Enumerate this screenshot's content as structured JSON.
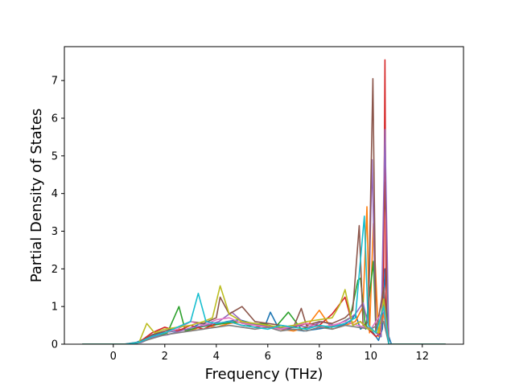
{
  "chart_data": {
    "type": "line",
    "title": "",
    "xlabel": "Frequency (THz)",
    "ylabel": "Partial Density of States",
    "xlim": [
      -1.9,
      13.6
    ],
    "ylim": [
      0,
      7.9
    ],
    "xticks": [
      0,
      2,
      4,
      6,
      8,
      10,
      12
    ],
    "xtick_labels": [
      "0",
      "2",
      "4",
      "6",
      "8",
      "10",
      "12"
    ],
    "yticks": [
      0,
      1,
      2,
      3,
      4,
      5,
      6,
      7
    ],
    "ytick_labels": [
      "0",
      "1",
      "2",
      "3",
      "4",
      "5",
      "6",
      "7"
    ],
    "grid": false,
    "legend": "none",
    "x_range_of_data": [
      -1.2,
      12.9
    ],
    "series": [
      {
        "color": "#1f77b4",
        "x": [
          -1.2,
          0.4,
          0.9,
          1.4,
          1.9,
          2.4,
          2.9,
          3.4,
          3.9,
          4.4,
          4.9,
          5.4,
          5.9,
          6.1,
          6.4,
          6.9,
          7.4,
          7.9,
          8.4,
          8.9,
          9.2,
          9.4,
          9.6,
          9.8,
          10.1,
          10.3,
          10.45,
          10.55,
          10.65,
          10.8,
          12.9
        ],
        "y": [
          0,
          0,
          0.05,
          0.2,
          0.3,
          0.35,
          0.4,
          0.55,
          0.5,
          0.6,
          0.65,
          0.55,
          0.5,
          0.85,
          0.45,
          0.4,
          0.35,
          0.4,
          0.45,
          0.5,
          0.6,
          0.8,
          0.4,
          0.5,
          0.3,
          0.1,
          0.4,
          2.0,
          0.3,
          0,
          0
        ]
      },
      {
        "color": "#ff7f0e",
        "x": [
          -1.2,
          0.5,
          1.0,
          1.5,
          2.0,
          2.5,
          3.0,
          3.5,
          4.0,
          4.5,
          5.0,
          5.5,
          6.0,
          6.5,
          7.0,
          7.5,
          8.0,
          8.5,
          9.0,
          9.4,
          9.7,
          9.85,
          9.95,
          10.1,
          10.3,
          10.5,
          10.7,
          12.9
        ],
        "y": [
          0,
          0,
          0.05,
          0.15,
          0.3,
          0.4,
          0.35,
          0.5,
          0.45,
          0.55,
          0.6,
          0.5,
          0.45,
          0.4,
          0.35,
          0.45,
          0.9,
          0.4,
          0.5,
          0.6,
          1.0,
          3.65,
          0.3,
          3.2,
          0.2,
          0.8,
          0,
          0
        ]
      },
      {
        "color": "#2ca02c",
        "x": [
          -1.2,
          0.6,
          1.1,
          1.6,
          2.1,
          2.55,
          2.8,
          3.3,
          3.8,
          4.3,
          4.8,
          5.3,
          5.8,
          6.3,
          6.8,
          7.3,
          7.8,
          8.3,
          8.8,
          9.2,
          9.5,
          9.6,
          9.8,
          10.1,
          10.2,
          10.4,
          10.55,
          10.7,
          12.9
        ],
        "y": [
          0,
          0,
          0.05,
          0.2,
          0.3,
          1.0,
          0.35,
          0.45,
          0.5,
          0.55,
          0.6,
          0.5,
          0.55,
          0.45,
          0.85,
          0.4,
          0.5,
          0.45,
          0.55,
          0.7,
          1.7,
          1.75,
          0.4,
          2.2,
          0.3,
          0.2,
          4.3,
          0,
          0
        ]
      },
      {
        "color": "#d62728",
        "x": [
          -1.2,
          0.5,
          1.0,
          1.5,
          2.0,
          2.5,
          3.0,
          3.5,
          4.0,
          4.5,
          5.0,
          5.5,
          6.0,
          6.5,
          7.0,
          7.5,
          8.0,
          8.5,
          9.0,
          9.3,
          9.6,
          9.9,
          10.2,
          10.4,
          10.5,
          10.55,
          10.6,
          10.7,
          12.9
        ],
        "y": [
          0,
          0,
          0.05,
          0.3,
          0.45,
          0.35,
          0.5,
          0.4,
          0.55,
          0.6,
          0.5,
          0.45,
          0.5,
          0.4,
          0.45,
          0.55,
          0.5,
          0.8,
          1.25,
          0.5,
          0.6,
          0.4,
          0.2,
          0.3,
          2.0,
          7.55,
          0.5,
          0,
          0
        ]
      },
      {
        "color": "#9467bd",
        "x": [
          -1.2,
          0.6,
          1.1,
          1.6,
          2.1,
          2.6,
          3.1,
          3.6,
          4.1,
          4.6,
          5.1,
          5.6,
          6.1,
          6.6,
          7.1,
          7.6,
          8.1,
          8.6,
          9.1,
          9.4,
          9.7,
          9.9,
          10.05,
          10.2,
          10.4,
          10.55,
          10.7,
          12.9
        ],
        "y": [
          0,
          0,
          0.05,
          0.2,
          0.25,
          0.35,
          0.45,
          0.5,
          0.6,
          0.85,
          0.55,
          0.5,
          0.45,
          0.4,
          0.5,
          0.45,
          0.6,
          0.5,
          0.65,
          0.8,
          1.1,
          0.5,
          4.9,
          0.3,
          0.2,
          5.7,
          0,
          0
        ]
      },
      {
        "color": "#8c564b",
        "x": [
          -1.2,
          0.5,
          1.0,
          1.5,
          2.0,
          2.5,
          3.0,
          3.5,
          4.0,
          4.15,
          4.5,
          5.0,
          5.5,
          6.0,
          6.5,
          7.0,
          7.3,
          7.5,
          8.0,
          8.5,
          9.0,
          9.3,
          9.55,
          9.7,
          9.9,
          10.08,
          10.2,
          10.5,
          10.7,
          12.9
        ],
        "y": [
          0,
          0,
          0.05,
          0.25,
          0.35,
          0.45,
          0.6,
          0.55,
          0.7,
          1.25,
          0.8,
          1.0,
          0.6,
          0.55,
          0.5,
          0.45,
          0.95,
          0.5,
          0.6,
          0.55,
          0.7,
          0.9,
          3.15,
          0.5,
          0.6,
          7.05,
          0.3,
          1.5,
          0,
          0
        ]
      },
      {
        "color": "#e377c2",
        "x": [
          -1.2,
          0.5,
          1.0,
          1.5,
          2.0,
          2.5,
          3.0,
          3.5,
          4.0,
          4.5,
          5.0,
          5.5,
          6.0,
          6.5,
          7.0,
          7.5,
          8.0,
          8.5,
          9.0,
          9.5,
          10.0,
          10.5,
          10.7,
          12.9
        ],
        "y": [
          0,
          0,
          0.05,
          0.2,
          0.3,
          0.4,
          0.6,
          0.5,
          0.65,
          0.7,
          0.55,
          0.5,
          0.45,
          0.4,
          0.5,
          0.55,
          0.45,
          0.5,
          0.6,
          0.5,
          0.4,
          0.9,
          0,
          0
        ]
      },
      {
        "color": "#7f7f7f",
        "x": [
          -1.2,
          0.5,
          1.0,
          1.5,
          2.0,
          2.5,
          3.0,
          3.5,
          4.0,
          4.5,
          5.0,
          5.5,
          6.0,
          6.5,
          7.0,
          7.5,
          8.0,
          8.5,
          9.0,
          9.5,
          10.0,
          10.5,
          10.7,
          12.9
        ],
        "y": [
          0,
          0,
          0.05,
          0.15,
          0.25,
          0.3,
          0.35,
          0.4,
          0.45,
          0.5,
          0.45,
          0.4,
          0.45,
          0.35,
          0.4,
          0.35,
          0.45,
          0.4,
          0.5,
          0.45,
          0.4,
          0.6,
          0,
          0
        ]
      },
      {
        "color": "#bcbd22",
        "x": [
          -1.2,
          0.5,
          1.0,
          1.3,
          1.6,
          2.0,
          2.5,
          3.0,
          3.5,
          3.85,
          4.15,
          4.5,
          5.0,
          5.5,
          6.0,
          6.5,
          7.0,
          7.5,
          8.0,
          8.5,
          8.8,
          9.0,
          9.3,
          9.6,
          9.9,
          10.3,
          10.5,
          10.7,
          12.9
        ],
        "y": [
          0,
          0,
          0.05,
          0.55,
          0.3,
          0.4,
          0.45,
          0.5,
          0.6,
          0.7,
          1.55,
          0.8,
          0.6,
          0.55,
          0.5,
          0.45,
          0.5,
          0.6,
          0.65,
          0.7,
          1.05,
          1.45,
          0.5,
          0.6,
          0.4,
          0.3,
          1.2,
          0,
          0
        ]
      },
      {
        "color": "#17becf",
        "x": [
          -1.2,
          0.5,
          1.0,
          1.5,
          2.0,
          2.5,
          3.0,
          3.3,
          3.6,
          4.0,
          4.5,
          5.0,
          5.5,
          6.0,
          6.5,
          7.0,
          7.5,
          8.0,
          8.5,
          9.0,
          9.4,
          9.75,
          9.9,
          10.2,
          10.5,
          10.7,
          12.9
        ],
        "y": [
          0,
          0,
          0.05,
          0.2,
          0.3,
          0.45,
          0.6,
          1.35,
          0.6,
          0.55,
          0.6,
          0.5,
          0.45,
          0.4,
          0.5,
          0.45,
          0.4,
          0.5,
          0.45,
          0.55,
          0.7,
          3.4,
          0.5,
          0.3,
          1.0,
          0,
          0
        ]
      }
    ]
  }
}
